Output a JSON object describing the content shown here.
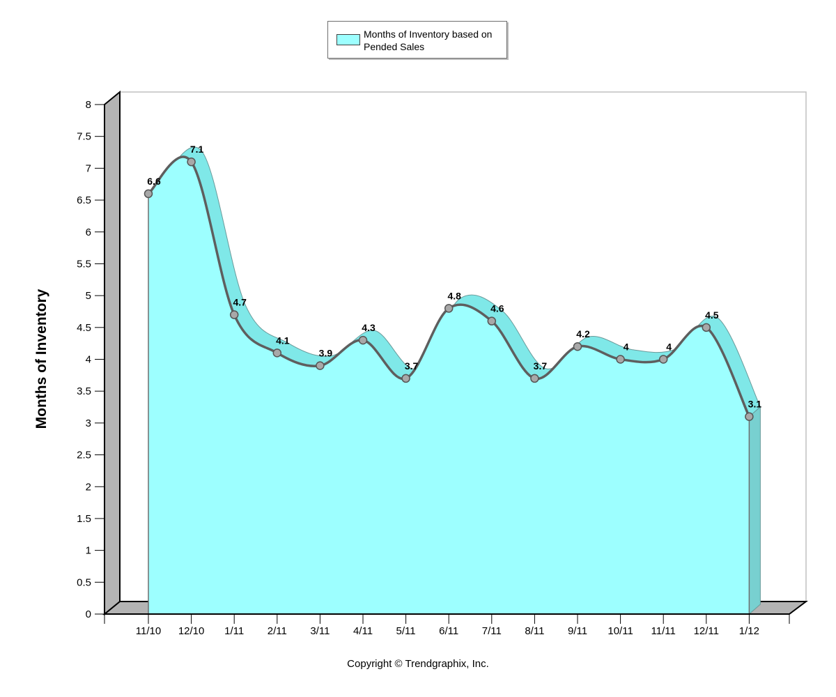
{
  "legend": {
    "series_name": "Months of Inventory based on Pended Sales",
    "swatch_color": "#9dffff"
  },
  "copyright": "Copyright © Trendgraphix, Inc.",
  "chart_data": {
    "type": "area",
    "ylabel": "Months of Inventory",
    "xlabel": "",
    "ylim": [
      0,
      8
    ],
    "yticks": [
      0,
      0.5,
      1,
      1.5,
      2,
      2.5,
      3,
      3.5,
      4,
      4.5,
      5,
      5.5,
      6,
      6.5,
      7,
      7.5,
      8
    ],
    "categories": [
      "11/10",
      "12/10",
      "1/11",
      "2/11",
      "3/11",
      "4/11",
      "5/11",
      "6/11",
      "7/11",
      "8/11",
      "9/11",
      "10/11",
      "11/11",
      "12/11",
      "1/12"
    ],
    "series": [
      {
        "name": "Months of Inventory based on Pended Sales",
        "values": [
          6.6,
          7.1,
          4.7,
          4.1,
          3.9,
          4.3,
          3.7,
          4.8,
          4.6,
          3.7,
          4.2,
          4,
          4,
          4.5,
          3.1
        ],
        "color": "#9dffff"
      }
    ],
    "legend_position": "top-center",
    "style": "3d",
    "grid": false
  }
}
